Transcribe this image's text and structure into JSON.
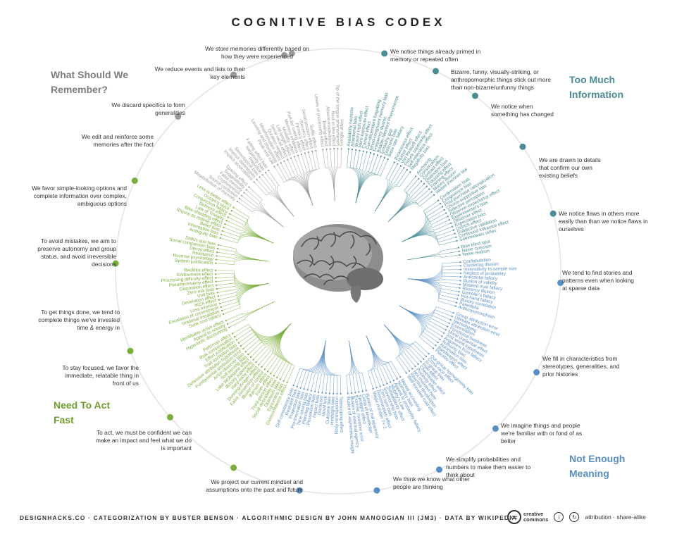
{
  "title": "COGNITIVE BIAS CODEX",
  "quadrants": {
    "remember": "What Should We Remember?",
    "information": "Too Much Information",
    "act_fast": "Need To Act Fast",
    "meaning": "Not Enough Meaning"
  },
  "colors": {
    "remember": "#9a9a9a",
    "information": "#4b8c95",
    "act_fast": "#7aad3a",
    "meaning": "#5a8fc4"
  },
  "categories": [
    {
      "text": "We store memories differently based on how they were experienced",
      "color": "remember"
    },
    {
      "text": "We notice things already primed in memory or repeated often",
      "color": "information"
    },
    {
      "text": "Bizarre, funny, visually-striking, or anthropomorphic things stick out more than non-bizarre/unfunny things",
      "color": "information"
    },
    {
      "text": "We notice when something has changed",
      "color": "information"
    },
    {
      "text": "We are drawn to details that confirm our own existing beliefs",
      "color": "information"
    },
    {
      "text": "We notice flaws in others more easily than than we notice flaws in ourselves",
      "color": "information"
    },
    {
      "text": "We tend to find stories and patterns even when looking at sparse data",
      "color": "meaning"
    },
    {
      "text": "We fill in characteristics from stereotypes, generalities, and prior histories",
      "color": "meaning"
    },
    {
      "text": "We imagine things and people we're familiar with or fond of as better",
      "color": "meaning"
    },
    {
      "text": "We simplify probabilities and numbers to make them easier to think about",
      "color": "meaning"
    },
    {
      "text": "We think we know what other people are thinking",
      "color": "meaning"
    },
    {
      "text": "We project our current mindset and assumptions onto the past and future",
      "color": "meaning"
    },
    {
      "text": "To act, we must be confident we can make an impact and feel what we do is important",
      "color": "act_fast"
    },
    {
      "text": "To stay focused, we favor the immediate, relatable thing in front of us",
      "color": "act_fast"
    },
    {
      "text": "To get things done, we tend to complete things we've invested time & energy in",
      "color": "act_fast"
    },
    {
      "text": "To avoid mistakes, we aim to preserve autonomy and group status, and avoid irreversible decisions",
      "color": "act_fast"
    },
    {
      "text": "We favor simple-looking options and complete information over complex, ambiguous options",
      "color": "act_fast"
    },
    {
      "text": "We edit and reinforce some memories after the fact",
      "color": "remember"
    },
    {
      "text": "We discard specifics to form generalities",
      "color": "remember"
    },
    {
      "text": "We reduce events and lists to their key elements",
      "color": "remember"
    }
  ],
  "clusters": [
    {
      "color": "remember",
      "biases": [
        "Misattribution of memory",
        "Source confusion",
        "Cryptomnesia",
        "False memory",
        "Suggestibility",
        "Spacing effect"
      ]
    },
    {
      "color": "remember",
      "biases": [
        "Implicit associations",
        "Implicit stereotypes",
        "Stereotypical bias",
        "Prejudice",
        "Negativity bias",
        "Fading affect bias"
      ]
    },
    {
      "color": "remember",
      "biases": [
        "Peak-end rule",
        "Leveling and sharpening",
        "Misinformation effect",
        "Duration neglect",
        "Serial recall effect",
        "List-length effect",
        "Modality effect",
        "Memory inhibition",
        "Part-list cueing effect",
        "Primacy effect",
        "Recency effect",
        "Serial position effect",
        "Suffix effect"
      ]
    },
    {
      "color": "remember",
      "biases": [
        "Levels of processing effect",
        "Testing effect",
        "Absent-mindedness",
        "Next-in-line effect",
        "Tip of the tongue phenomenon",
        "Google effect"
      ]
    },
    {
      "color": "information",
      "biases": [
        "Availability heuristic",
        "Attentional bias",
        "Illusory truth effect",
        "Mere exposure effect",
        "Context effect",
        "Cue-dependent forgetting",
        "Mood-congruent memory bias",
        "Frequency illusion",
        "Baader-Meinhof Phenomenon",
        "Empathy gap",
        "Omission bias",
        "Base rate fallacy"
      ]
    },
    {
      "color": "information",
      "biases": [
        "Bizarreness effect",
        "Humor effect",
        "Von Restorff effect",
        "Picture superiority effect",
        "Self-relevance effect",
        "Negativity bias"
      ]
    },
    {
      "color": "information",
      "biases": [
        "Anchoring",
        "Conservatism",
        "Contrast effect",
        "Distinction bias",
        "Focusing effect",
        "Framing effect",
        "Money illusion",
        "Weber-Fechner law"
      ]
    },
    {
      "color": "information",
      "biases": [
        "Confirmation bias",
        "Congruence bias",
        "Post-purchase rationalization",
        "Choice-supportive bias",
        "Selective perception",
        "Observer-expectancy effect",
        "Experimenter's bias",
        "Observer effect",
        "Expectation bias",
        "Ostrich effect",
        "Subjective validation",
        "Continued influence effect",
        "Semmelweis reflex"
      ]
    },
    {
      "color": "information",
      "biases": [
        "Bias blind spot",
        "Naive cynicism",
        "Naive realism"
      ]
    },
    {
      "color": "meaning",
      "biases": [
        "Confabulation",
        "Clustering illusion",
        "Insensitivity to sample size",
        "Neglect of probability",
        "Anecdotal fallacy",
        "Illusion of validity",
        "Masked man fallacy",
        "Recency illusion",
        "Gambler's fallacy",
        "Hot-hand fallacy",
        "Illusory correlation",
        "Pareidolia",
        "Anthropomorphism"
      ]
    },
    {
      "color": "meaning",
      "biases": [
        "Group attribution error",
        "Ultimate attribution error",
        "Stereotyping",
        "Essentialism",
        "Functional fixedness",
        "Moral credential effect",
        "Just-world hypothesis",
        "Argument from fallacy",
        "Authority bias",
        "Automation bias",
        "Bandwagon effect",
        "Placebo effect"
      ]
    },
    {
      "color": "meaning",
      "biases": [
        "Out-group homogeneity bias",
        "Cross-race effect",
        "In-group bias",
        "Halo effect",
        "Cheerleader effect",
        "Positivity effect",
        "Not invented here",
        "Reactive devaluation",
        "Well-traveled road effect"
      ]
    },
    {
      "color": "meaning",
      "biases": [
        "Mental accounting",
        "Normalcy bias",
        "Appeal to probability fallacy",
        "Murphy's Law",
        "Subadditivity effect",
        "Survivorship bias",
        "Zero sum bias",
        "Denomination effect",
        "Magic number 7+-2"
      ]
    },
    {
      "color": "meaning",
      "biases": [
        "Illusion of transparency",
        "Curse of knowledge",
        "Spotlight effect",
        "Extrinsic incentive error",
        "Illusion of external agency",
        "Illusion of asymmetric insight"
      ]
    },
    {
      "color": "meaning",
      "biases": [
        "Telescoping effect",
        "Rosy retrospection",
        "Hindsight bias",
        "Outcome bias",
        "Moral luck",
        "Declinism",
        "Impact bias",
        "Pessimism bias",
        "Planning fallacy",
        "Time-saving bias",
        "Pro-innovation bias",
        "Projection bias",
        "Restraint bias",
        "Self-consistency bias"
      ]
    },
    {
      "color": "act_fast",
      "biases": [
        "Overconfidence effect",
        "Egocentric bias",
        "Optimism bias",
        "Social desirability bias",
        "Third-person effect",
        "Forer effect",
        "Barnum effect",
        "Illusion of control",
        "False consensus effect",
        "Dunning-Kruger effect",
        "Hard-easy effect",
        "Illusory superiority",
        "Lake Wobegone effect",
        "Self-serving bias",
        "Actor-observer bias",
        "Fundamental attribution error",
        "Defensive attribution hypothesis",
        "Trait ascription bias",
        "Effort justification",
        "Risk compensation",
        "Peltzman effect"
      ]
    },
    {
      "color": "act_fast",
      "biases": [
        "Hyperbolic discounting",
        "Appeal to novelty",
        "Identifiable victim effect"
      ]
    },
    {
      "color": "act_fast",
      "biases": [
        "Sunk cost fallacy",
        "Irrational escalation",
        "Escalation of commitment",
        "Loss aversion",
        "IKEA effect",
        "Generation effect",
        "Unit bias",
        "Zero-risk bias",
        "Disposition effect",
        "Pseudocertainty effect",
        "Processing difficulty effect",
        "Endowment effect",
        "Backfire effect"
      ]
    },
    {
      "color": "act_fast",
      "biases": [
        "System justification",
        "Reverse psychology",
        "Reactance",
        "Decoy effect",
        "Social comparison bias",
        "Status quo bias"
      ]
    },
    {
      "color": "act_fast",
      "biases": [
        "Ambiguity bias",
        "Information bias",
        "Belief bias",
        "Rhyme as reason effect",
        "Bike-shedding effect",
        "Law of Triviality",
        "Delmore effect",
        "Conjunction fallacy",
        "Occam's razor",
        "Less-is-better effect"
      ]
    }
  ],
  "footer": {
    "credits": "DESIGNHACKS.CO  ·  CATEGORIZATION BY BUSTER BENSON  ·  ALGORITHMIC DESIGN BY JOHN MANOOGIAN III (JM3)  ·  DATA BY WIKIPEDIA",
    "cc_logo_line1": "creative",
    "cc_logo_line2": "commons",
    "license": "attribution · share-alike"
  }
}
